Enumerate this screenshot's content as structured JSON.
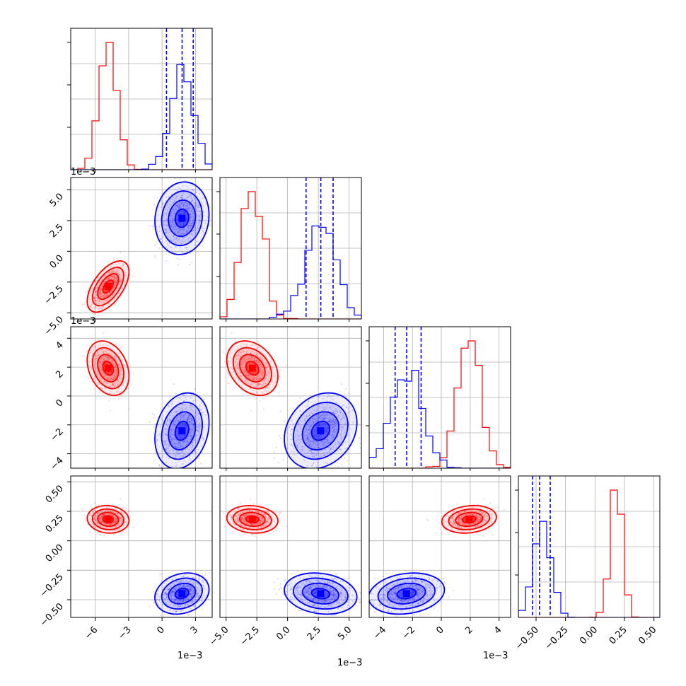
{
  "chart_data": {
    "type": "corner",
    "parameters": 4,
    "series": [
      {
        "color": "#ff0000",
        "means": [
          -4.8,
          -2.8,
          1.9,
          0.18
        ],
        "sds": [
          0.8,
          0.85,
          0.75,
          0.05
        ],
        "correlations": {
          "0-1": 0.55,
          "0-2": -0.4,
          "1-2": -0.4,
          "0-3": -0.1,
          "1-3": -0.2,
          "2-3": 0.35
        }
      },
      {
        "color": "#0000ff",
        "means": [
          1.8,
          2.7,
          -2.4,
          -0.45
        ],
        "sds": [
          1.0,
          1.2,
          1.1,
          0.07
        ],
        "correlations": {
          "0-1": 0.1,
          "0-2": 0.5,
          "1-2": 0.3,
          "0-3": 0.55,
          "1-3": -0.7,
          "2-3": 0.55
        },
        "quantiles": [
          [
            0.4,
            1.8,
            2.8
          ],
          [
            1.5,
            2.7,
            3.7
          ],
          [
            -3.2,
            -2.4,
            -1.4
          ],
          [
            -0.53,
            -0.47,
            -0.38
          ]
        ]
      }
    ],
    "ranges": [
      [
        -8.2,
        4.5
      ],
      [
        -5.5,
        6.0
      ],
      [
        -5.0,
        4.8
      ],
      [
        -0.65,
        0.55
      ]
    ],
    "ticks": [
      {
        "values": [
          -6,
          -3,
          0,
          3
        ],
        "labels": [
          "−6",
          "−3",
          "0",
          "3"
        ]
      },
      {
        "values": [
          -5,
          -2.5,
          0,
          2.5,
          5
        ],
        "labels": [
          "−5.0",
          "−2.5",
          "0.0",
          "2.5",
          "5.0"
        ]
      },
      {
        "values": [
          -4,
          -2,
          0,
          2,
          4
        ],
        "labels": [
          "−4",
          "−2",
          "0",
          "2",
          "4"
        ]
      },
      {
        "values": [
          -0.5,
          -0.25,
          0,
          0.25,
          0.5
        ],
        "labels": [
          "−0.50",
          "−0.25",
          "0.00",
          "0.25",
          "0.50"
        ]
      }
    ],
    "offset_labels": [
      "1e−3",
      "1e−3",
      "1e−3"
    ],
    "grid": true
  }
}
